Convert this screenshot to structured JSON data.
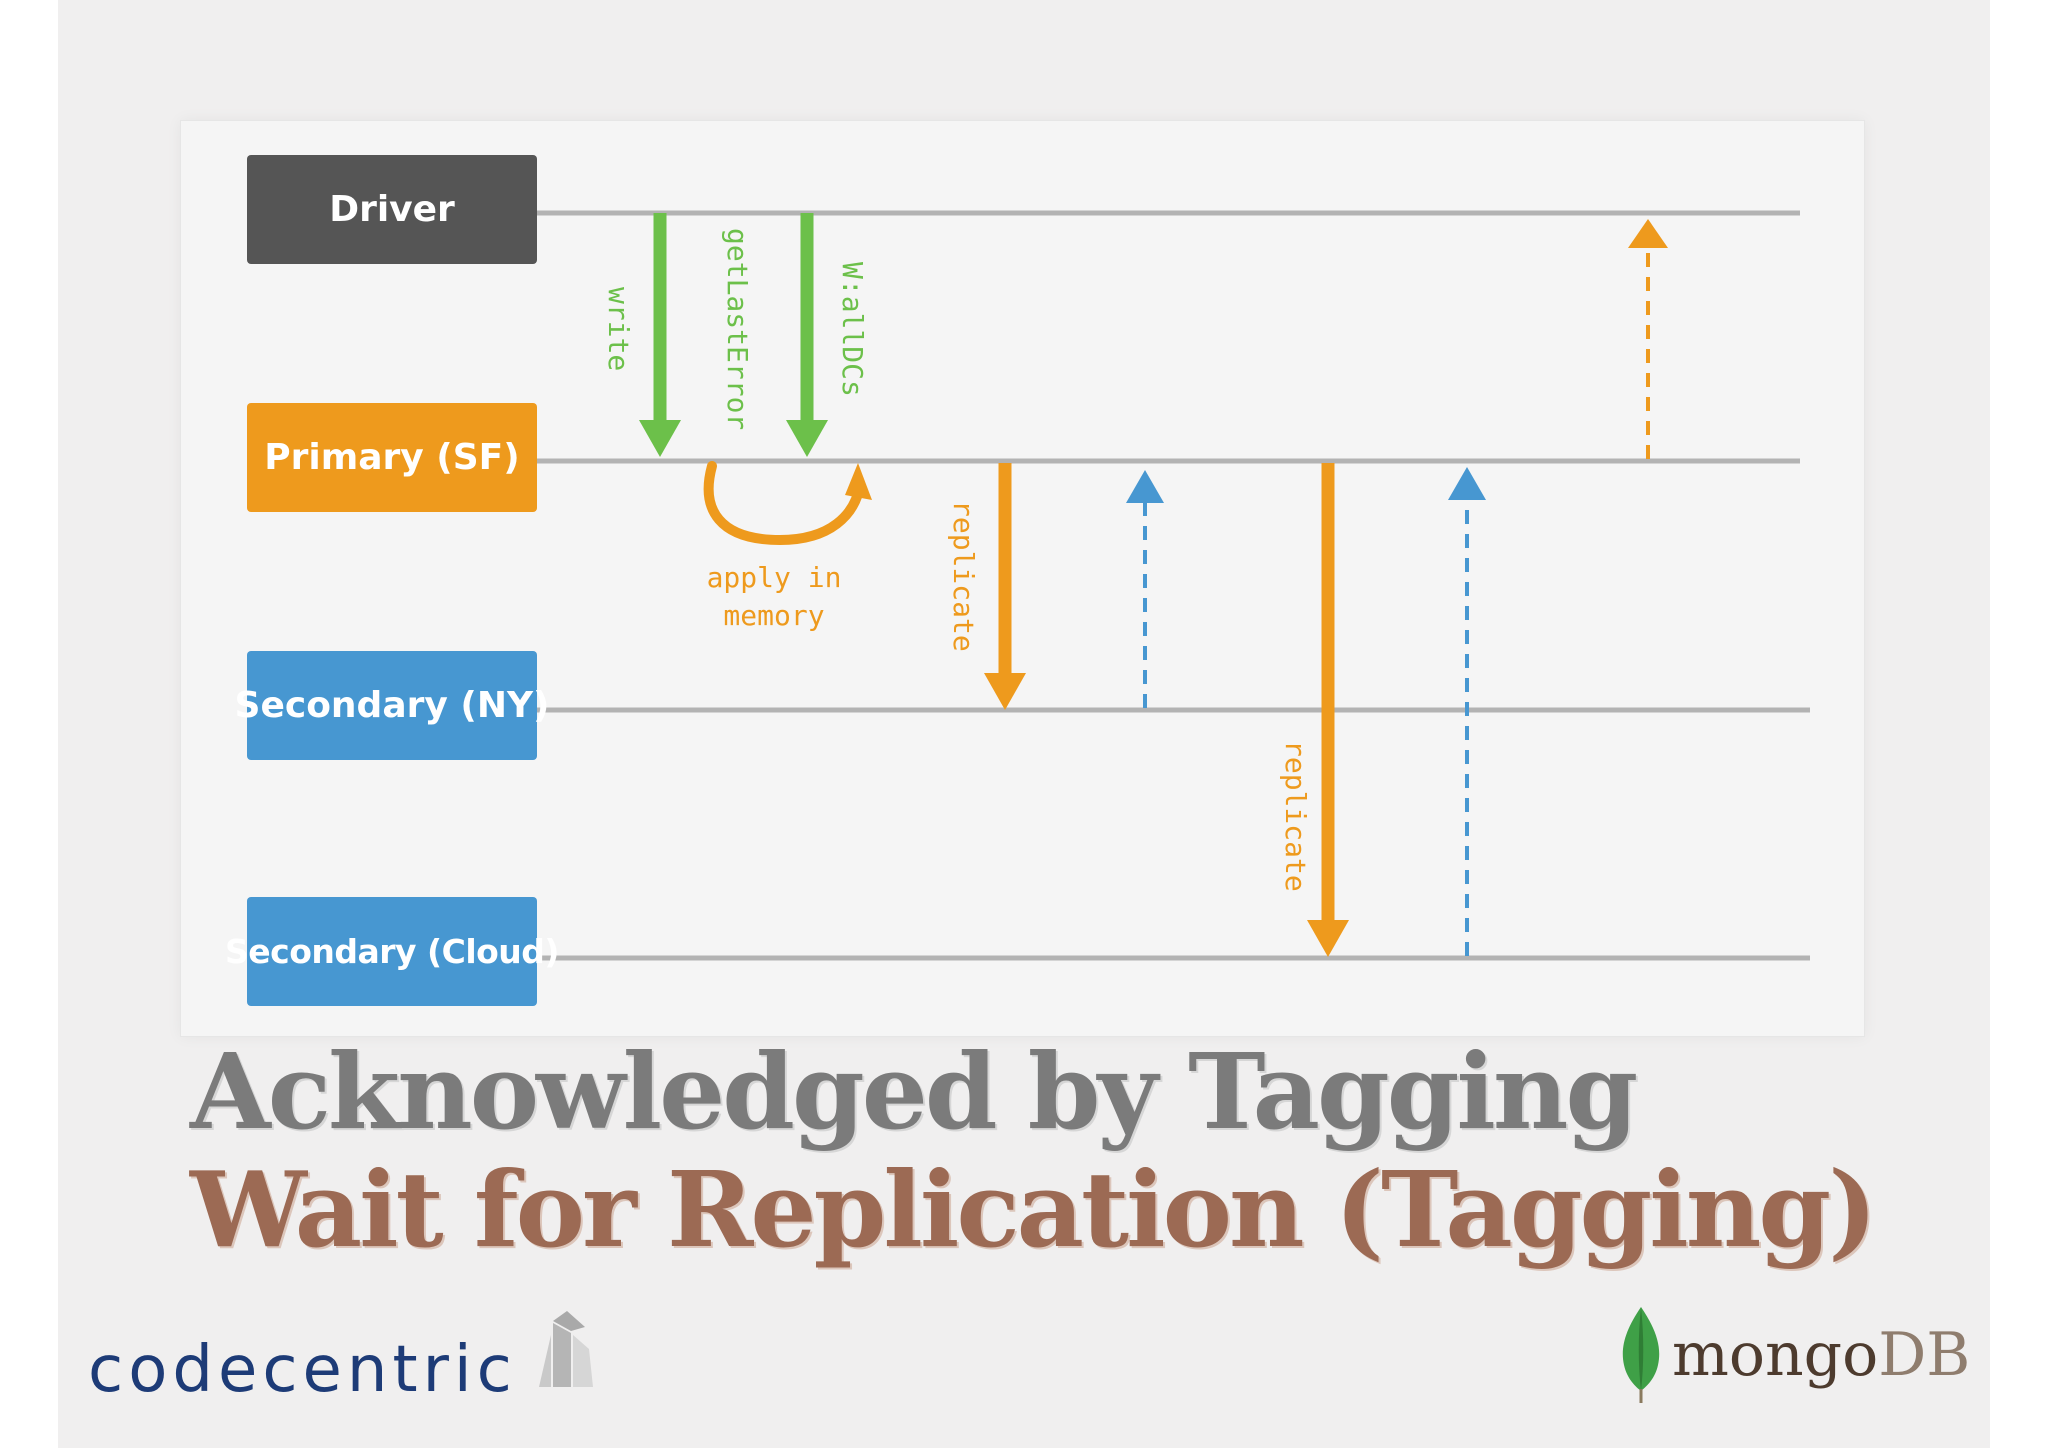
{
  "nodes": {
    "driver": "Driver",
    "primary": "Primary (SF)",
    "secondary_ny": "Secondary (NY)",
    "secondary_cloud": "Secondary (Cloud)"
  },
  "labels": {
    "write": "write",
    "get_last_error": "getLastError",
    "w_all_dcs": "W:allDCs",
    "apply_in": "apply in",
    "memory": "memory",
    "replicate_ny": "replicate",
    "replicate_cloud": "replicate"
  },
  "titles": {
    "line1": "Acknowledged by Tagging",
    "line2": "Wait for Replication (Tagging)"
  },
  "logos": {
    "codecentric": "codecentric",
    "mongo_a": "mongo",
    "mongo_b": "DB"
  },
  "colors": {
    "driver": "#555555",
    "primary": "#ee9a1d",
    "secondary": "#4797d1",
    "green_arrow": "#6cc04a",
    "orange_arrow": "#ee9a1d",
    "blue_ack": "#4797d1",
    "timeline": "#b3b3b3"
  }
}
